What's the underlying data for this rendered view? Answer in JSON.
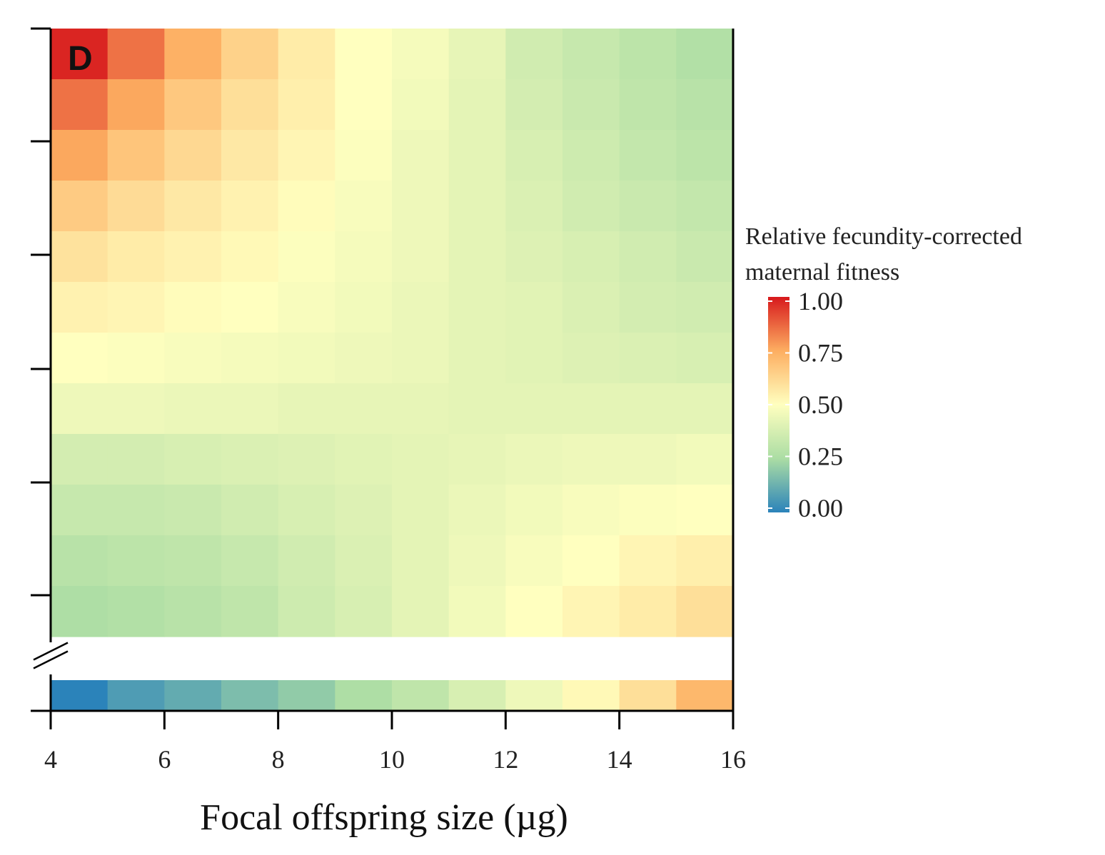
{
  "chart_data": {
    "type": "heatmap",
    "panel_label": "D",
    "xlabel": "Focal offspring size (µg)",
    "ylabel": "",
    "x_ticks": [
      "4",
      "6",
      "8",
      "10",
      "12",
      "14",
      "16"
    ],
    "xlim": [
      4,
      16
    ],
    "x_bins": [
      4,
      5,
      6,
      7,
      8,
      9,
      10,
      11,
      12,
      13,
      14,
      15,
      16
    ],
    "y_ticks": [],
    "y_axis_break": true,
    "legend": {
      "title_lines": [
        "Relative fecundity-corrected",
        "maternal fitness"
      ],
      "ticks": [
        "1.00",
        "0.75",
        "0.50",
        "0.25",
        "0.00"
      ],
      "tick_values": [
        1.0,
        0.75,
        0.5,
        0.25,
        0.0
      ],
      "range": [
        0,
        1
      ],
      "colors": [
        {
          "stop": 0.0,
          "color": "#2b83ba"
        },
        {
          "stop": 0.25,
          "color": "#abdda4"
        },
        {
          "stop": 0.5,
          "color": "#ffffbf"
        },
        {
          "stop": 0.75,
          "color": "#fdae61"
        },
        {
          "stop": 1.0,
          "color": "#d7191c"
        }
      ]
    },
    "rows_top_to_bottom": [
      [
        0.98,
        0.85,
        0.74,
        0.64,
        0.56,
        0.5,
        0.47,
        0.43,
        0.36,
        0.33,
        0.3,
        0.27
      ],
      [
        0.85,
        0.76,
        0.67,
        0.6,
        0.55,
        0.5,
        0.46,
        0.42,
        0.37,
        0.34,
        0.31,
        0.29
      ],
      [
        0.76,
        0.68,
        0.62,
        0.57,
        0.53,
        0.49,
        0.45,
        0.42,
        0.38,
        0.35,
        0.32,
        0.3
      ],
      [
        0.66,
        0.61,
        0.57,
        0.54,
        0.51,
        0.48,
        0.45,
        0.42,
        0.39,
        0.36,
        0.34,
        0.32
      ],
      [
        0.59,
        0.56,
        0.54,
        0.52,
        0.49,
        0.47,
        0.45,
        0.42,
        0.4,
        0.38,
        0.36,
        0.34
      ],
      [
        0.54,
        0.53,
        0.51,
        0.5,
        0.48,
        0.46,
        0.44,
        0.42,
        0.41,
        0.39,
        0.37,
        0.36
      ],
      [
        0.5,
        0.49,
        0.48,
        0.47,
        0.46,
        0.45,
        0.44,
        0.42,
        0.41,
        0.4,
        0.39,
        0.38
      ],
      [
        0.45,
        0.45,
        0.44,
        0.44,
        0.43,
        0.43,
        0.43,
        0.42,
        0.42,
        0.42,
        0.42,
        0.42
      ],
      [
        0.37,
        0.37,
        0.38,
        0.39,
        0.4,
        0.41,
        0.42,
        0.43,
        0.44,
        0.45,
        0.45,
        0.46
      ],
      [
        0.33,
        0.33,
        0.34,
        0.36,
        0.38,
        0.4,
        0.42,
        0.44,
        0.46,
        0.48,
        0.49,
        0.5
      ],
      [
        0.29,
        0.3,
        0.31,
        0.33,
        0.36,
        0.39,
        0.42,
        0.45,
        0.48,
        0.5,
        0.53,
        0.55
      ],
      [
        0.26,
        0.27,
        0.29,
        0.31,
        0.35,
        0.38,
        0.42,
        0.46,
        0.5,
        0.53,
        0.56,
        0.6
      ]
    ],
    "bottom_row": [
      0.0,
      0.07,
      0.11,
      0.16,
      0.2,
      0.26,
      0.31,
      0.38,
      0.45,
      0.52,
      0.6,
      0.72
    ]
  }
}
